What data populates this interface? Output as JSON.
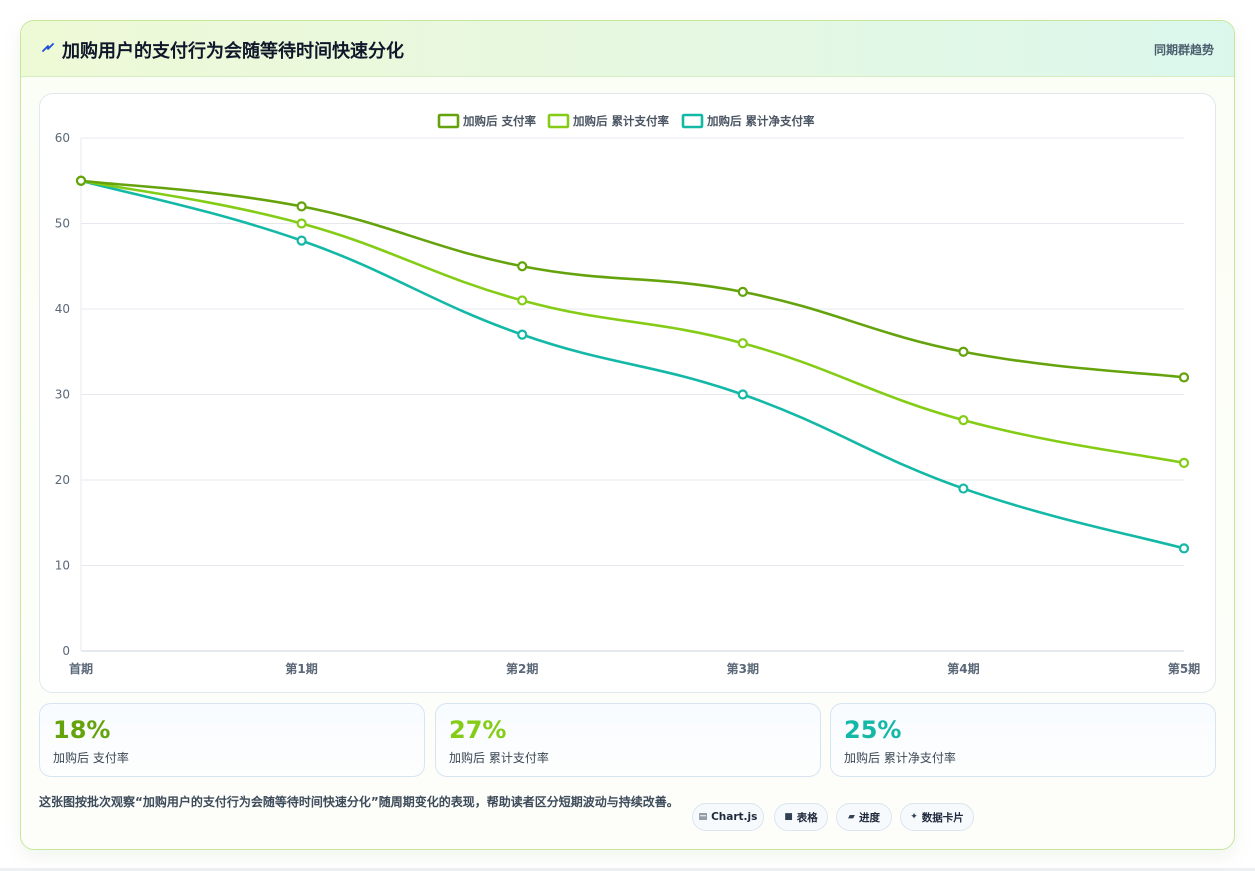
{
  "header": {
    "title": "加购用户的支付行为会随等待时间快速分化",
    "link": "同期群趋势",
    "accent": "#1d4ed8"
  },
  "chart_data": {
    "type": "line",
    "categories": [
      "首期",
      "第1期",
      "第2期",
      "第3期",
      "第4期",
      "第5期"
    ],
    "series": [
      {
        "name": "加购后 支付率",
        "values": [
          55,
          52,
          45,
          42,
          35,
          32
        ],
        "color": "#65a30d"
      },
      {
        "name": "加购后 累计支付率",
        "values": [
          55,
          50,
          41,
          36,
          27,
          22
        ],
        "color": "#84cc16"
      },
      {
        "name": "加购后 累计净支付率",
        "values": [
          55,
          48,
          37,
          30,
          19,
          12
        ],
        "color": "#14b8a6"
      }
    ],
    "yticks": [
      0,
      10,
      20,
      30,
      40,
      50,
      60
    ],
    "ylim": [
      0,
      60
    ],
    "grid": true,
    "legend_position": "top-center",
    "title": "",
    "xlabel": "",
    "ylabel": ""
  },
  "stats": [
    {
      "value": "18%",
      "label": "加购后 支付率",
      "color": "#65a30d"
    },
    {
      "value": "27%",
      "label": "加购后 累计支付率",
      "color": "#84cc16"
    },
    {
      "value": "25%",
      "label": "加购后 累计净支付率",
      "color": "#14b8a6"
    }
  ],
  "footnote": "这张图按批次观察“加购用户的支付行为会随等待时间快速分化”随周期变化的表现，帮助读者区分短期波动与持续改善。",
  "tags": [
    {
      "icon": "chart-icon",
      "glyph": "▤",
      "label": "Chart.js"
    },
    {
      "icon": "table-icon",
      "glyph": "■",
      "label": "表格"
    },
    {
      "icon": "progress-icon",
      "glyph": "▰",
      "label": "进度"
    },
    {
      "icon": "data-card-icon",
      "glyph": "✦",
      "label": "数据卡片"
    }
  ]
}
